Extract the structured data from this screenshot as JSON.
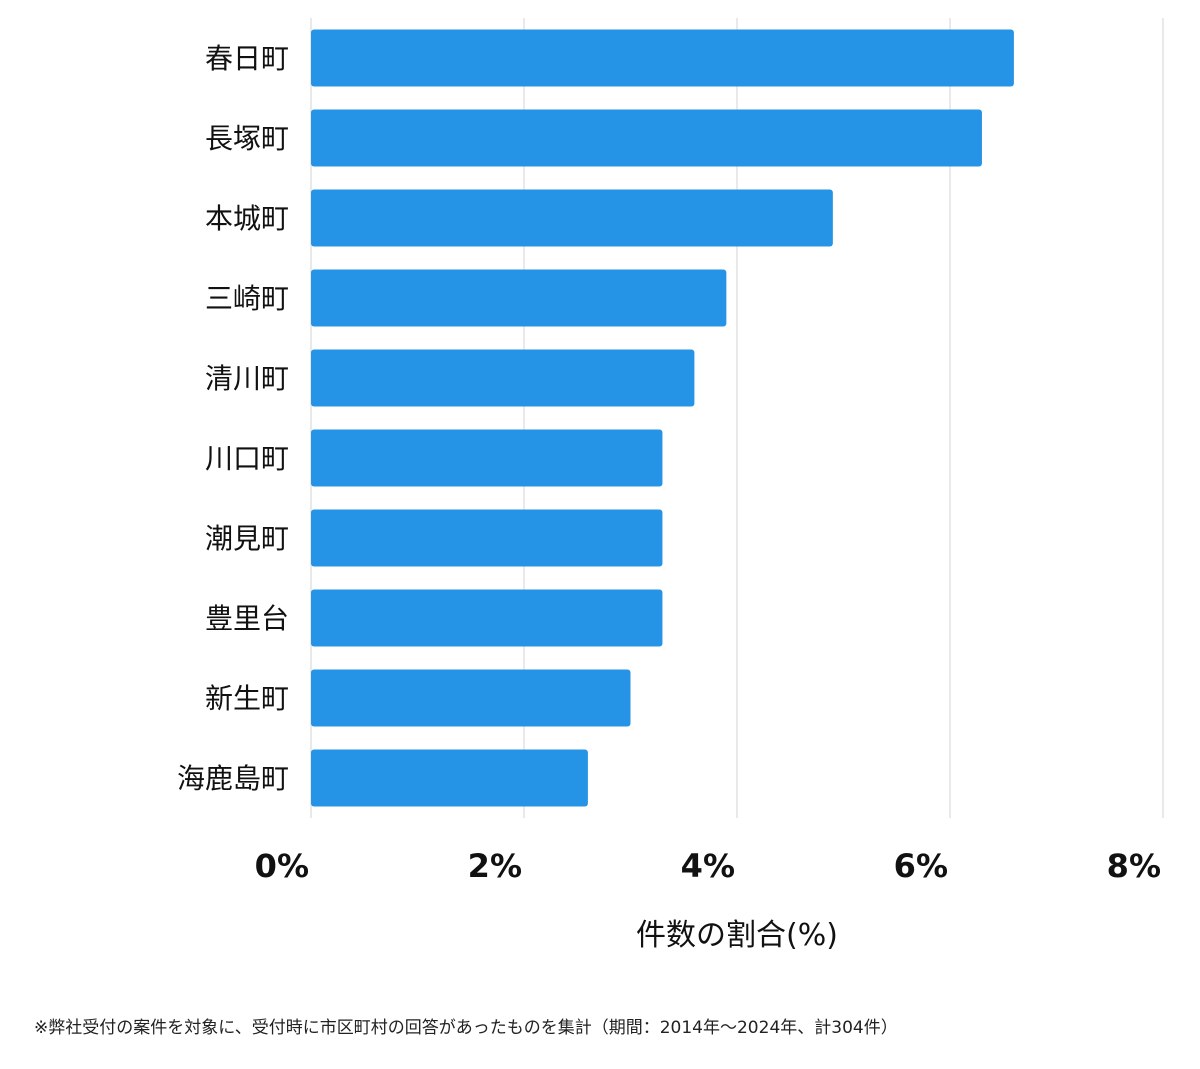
{
  "chart_data": {
    "type": "bar",
    "orientation": "horizontal",
    "categories": [
      "春日町",
      "長塚町",
      "本城町",
      "三崎町",
      "清川町",
      "川口町",
      "潮見町",
      "豊里台",
      "新生町",
      "海鹿島町"
    ],
    "values": [
      6.6,
      6.3,
      4.9,
      3.9,
      3.6,
      3.3,
      3.3,
      3.3,
      3.0,
      2.6
    ],
    "xlim": [
      0,
      8
    ],
    "ticks": [
      0,
      2,
      4,
      6,
      8
    ],
    "tick_labels": [
      "0%",
      "2%",
      "4%",
      "6%",
      "8%"
    ],
    "xlabel": "件数の割合(%)",
    "ylabel": "",
    "bar_color": "#2594e6",
    "grid": true
  },
  "footnote": "※弊社受付の案件を対象に、受付時に市区町村の回答があったものを集計（期間：2014年〜2024年、計304件）"
}
